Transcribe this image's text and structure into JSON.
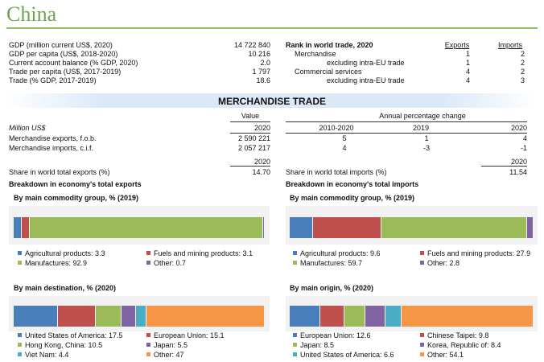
{
  "title": "China",
  "indicators": [
    {
      "label": "GDP (million current US$, 2020)",
      "value": "14 722 840"
    },
    {
      "label": "GDP per capita (US$, 2018-2020)",
      "value": "10 216"
    },
    {
      "label": "Current account balance (% GDP, 2020)",
      "value": "2.0"
    },
    {
      "label": "Trade per capita (US$, 2017-2019)",
      "value": "1 797"
    },
    {
      "label": "Trade (% GDP, 2017-2019)",
      "value": "18.6"
    }
  ],
  "rank": {
    "title": "Rank in world trade, 2020",
    "exports_header": "Exports",
    "imports_header": "Imports",
    "rows": [
      {
        "label": "Merchandise",
        "exports": "1",
        "imports": "2"
      },
      {
        "label": "excluding intra-EU trade",
        "exports": "1",
        "imports": "2"
      },
      {
        "label": "Commercial services",
        "exports": "4",
        "imports": "2"
      },
      {
        "label": "excluding intra-EU trade",
        "exports": "4",
        "imports": "3"
      }
    ]
  },
  "merch": {
    "section_title": "MERCHANDISE TRADE",
    "value_header": "Value",
    "annual_header": "Annual percentage change",
    "unit": "Million US$",
    "year_value": "2020",
    "period_1": "2010-2020",
    "period_2": "2019",
    "period_3": "2020",
    "rows": [
      {
        "label": "Merchandise exports, f.o.b.",
        "value": "2 590 221",
        "p1": "5",
        "p2": "1",
        "p3": "4"
      },
      {
        "label": "Merchandise imports, c.i.f.",
        "value": "2 057 217",
        "p1": "4",
        "p2": "-3",
        "p3": "-1"
      }
    ],
    "share_exports": {
      "label": "Share in world total exports (%)",
      "year": "2020",
      "value": "14.70"
    },
    "share_imports": {
      "label": "Share in world total imports (%)",
      "year": "2020",
      "value": "11.54"
    }
  },
  "breakdown_exports_title": "Breakdown in economy's total exports",
  "breakdown_imports_title": "Breakdown in economy's total imports",
  "colors": {
    "blue": "#4a7ebb",
    "red": "#c0504d",
    "green": "#9bbb59",
    "purple": "#8064a2",
    "teal": "#4bacc6",
    "orange": "#f79646"
  },
  "chart_data": [
    {
      "type": "bar",
      "title": "By main commodity group, % (2019)",
      "series": [
        {
          "name": "Agricultural products",
          "value": 3.3,
          "legend": "Agricultural products: 3.3",
          "color": "#4a7ebb"
        },
        {
          "name": "Fuels and mining products",
          "value": 3.1,
          "legend": "Fuels and mining products: 3.1",
          "color": "#c0504d"
        },
        {
          "name": "Manufactures",
          "value": 92.9,
          "legend": "Manufactures: 92.9",
          "color": "#9bbb59"
        },
        {
          "name": "Other",
          "value": 0.7,
          "legend": "Other: 0.7",
          "color": "#8064a2"
        }
      ]
    },
    {
      "type": "bar",
      "title": "By main commodity group, % (2019)",
      "series": [
        {
          "name": "Agricultural products",
          "value": 9.6,
          "legend": "Agricultural products: 9.6",
          "color": "#4a7ebb"
        },
        {
          "name": "Fuels and mining products",
          "value": 27.9,
          "legend": "Fuels and mining products: 27.9",
          "color": "#c0504d"
        },
        {
          "name": "Manufactures",
          "value": 59.7,
          "legend": "Manufactures: 59.7",
          "color": "#9bbb59"
        },
        {
          "name": "Other",
          "value": 2.8,
          "legend": "Other: 2.8",
          "color": "#8064a2"
        }
      ]
    },
    {
      "type": "bar",
      "title": "By main destination, % (2020)",
      "series": [
        {
          "name": "United States of America",
          "value": 17.5,
          "legend": "United States of America: 17.5",
          "color": "#4a7ebb"
        },
        {
          "name": "European Union",
          "value": 15.1,
          "legend": "European Union: 15.1",
          "color": "#c0504d"
        },
        {
          "name": "Hong Kong, China",
          "value": 10.5,
          "legend": "Hong Kong, China: 10.5",
          "color": "#9bbb59"
        },
        {
          "name": "Japan",
          "value": 5.5,
          "legend": "Japan: 5.5",
          "color": "#8064a2"
        },
        {
          "name": "Viet Nam",
          "value": 4.4,
          "legend": "Viet Nam: 4.4",
          "color": "#4bacc6"
        },
        {
          "name": "Other",
          "value": 47,
          "legend": "Other: 47",
          "color": "#f79646"
        }
      ]
    },
    {
      "type": "bar",
      "title": "By main origin, % (2020)",
      "series": [
        {
          "name": "European Union",
          "value": 12.6,
          "legend": "European Union: 12.6",
          "color": "#4a7ebb"
        },
        {
          "name": "Chinese Taipei",
          "value": 9.8,
          "legend": "Chinese Taipei: 9.8",
          "color": "#c0504d"
        },
        {
          "name": "Japan",
          "value": 8.5,
          "legend": "Japan: 8.5",
          "color": "#9bbb59"
        },
        {
          "name": "Korea, Republic of",
          "value": 8.4,
          "legend": "Korea, Republic of: 8.4",
          "color": "#8064a2"
        },
        {
          "name": "United States of America",
          "value": 6.6,
          "legend": "United States of America: 6.6",
          "color": "#4bacc6"
        },
        {
          "name": "Other",
          "value": 54.1,
          "legend": "Other: 54.1",
          "color": "#f79646"
        }
      ]
    }
  ]
}
